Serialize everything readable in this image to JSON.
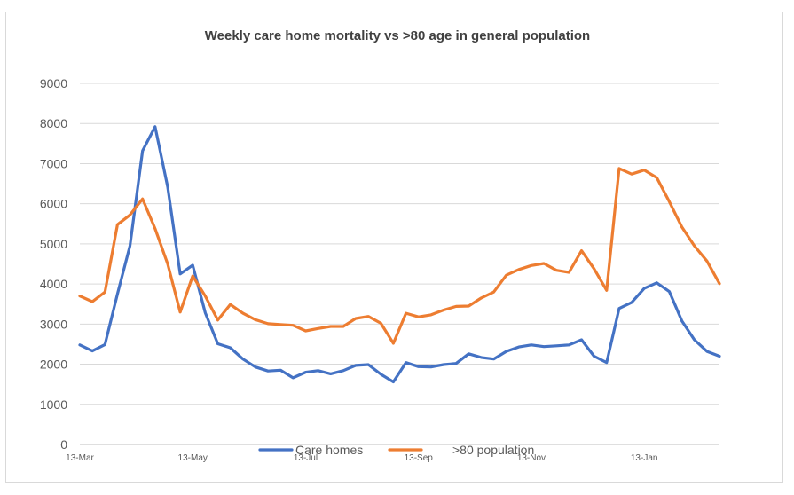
{
  "chart_data": {
    "type": "line",
    "title": "Weekly care home mortality vs >80 age in general population",
    "xlabel": "",
    "ylabel": "",
    "ylim": [
      0,
      9000
    ],
    "yticks": [
      0,
      1000,
      2000,
      3000,
      4000,
      5000,
      6000,
      7000,
      8000,
      9000
    ],
    "x_tick_labels": [
      "13-Mar",
      "13-May",
      "13-Jul",
      "13-Sep",
      "13-Nov",
      "13-Jan"
    ],
    "x_tick_index": [
      0,
      9,
      18,
      27,
      36,
      45
    ],
    "grid": true,
    "legend_position": "bottom",
    "series": [
      {
        "name": "Care homes",
        "color": "#4472c4",
        "values": [
          2480,
          2330,
          2490,
          3750,
          4950,
          7320,
          7920,
          6420,
          4250,
          4470,
          3280,
          2510,
          2410,
          2130,
          1930,
          1830,
          1850,
          1660,
          1800,
          1840,
          1760,
          1840,
          1970,
          1990,
          1750,
          1560,
          2040,
          1940,
          1930,
          1990,
          2020,
          2260,
          2170,
          2130,
          2320,
          2430,
          2480,
          2440,
          2460,
          2480,
          2610,
          2200,
          2040,
          3390,
          3540,
          3890,
          4030,
          3810,
          3080,
          2610,
          2320,
          2200
        ]
      },
      {
        "name": ">80 population",
        "color": "#ed7d31",
        "values": [
          3700,
          3560,
          3800,
          5480,
          5720,
          6120,
          5380,
          4500,
          3300,
          4200,
          3700,
          3100,
          3490,
          3270,
          3110,
          3010,
          2990,
          2970,
          2830,
          2890,
          2940,
          2940,
          3140,
          3190,
          3020,
          2520,
          3270,
          3180,
          3230,
          3350,
          3440,
          3450,
          3650,
          3800,
          4220,
          4360,
          4460,
          4510,
          4340,
          4290,
          4830,
          4380,
          3840,
          6880,
          6740,
          6840,
          6650,
          6050,
          5420,
          4950,
          4570,
          4010
        ]
      }
    ]
  }
}
